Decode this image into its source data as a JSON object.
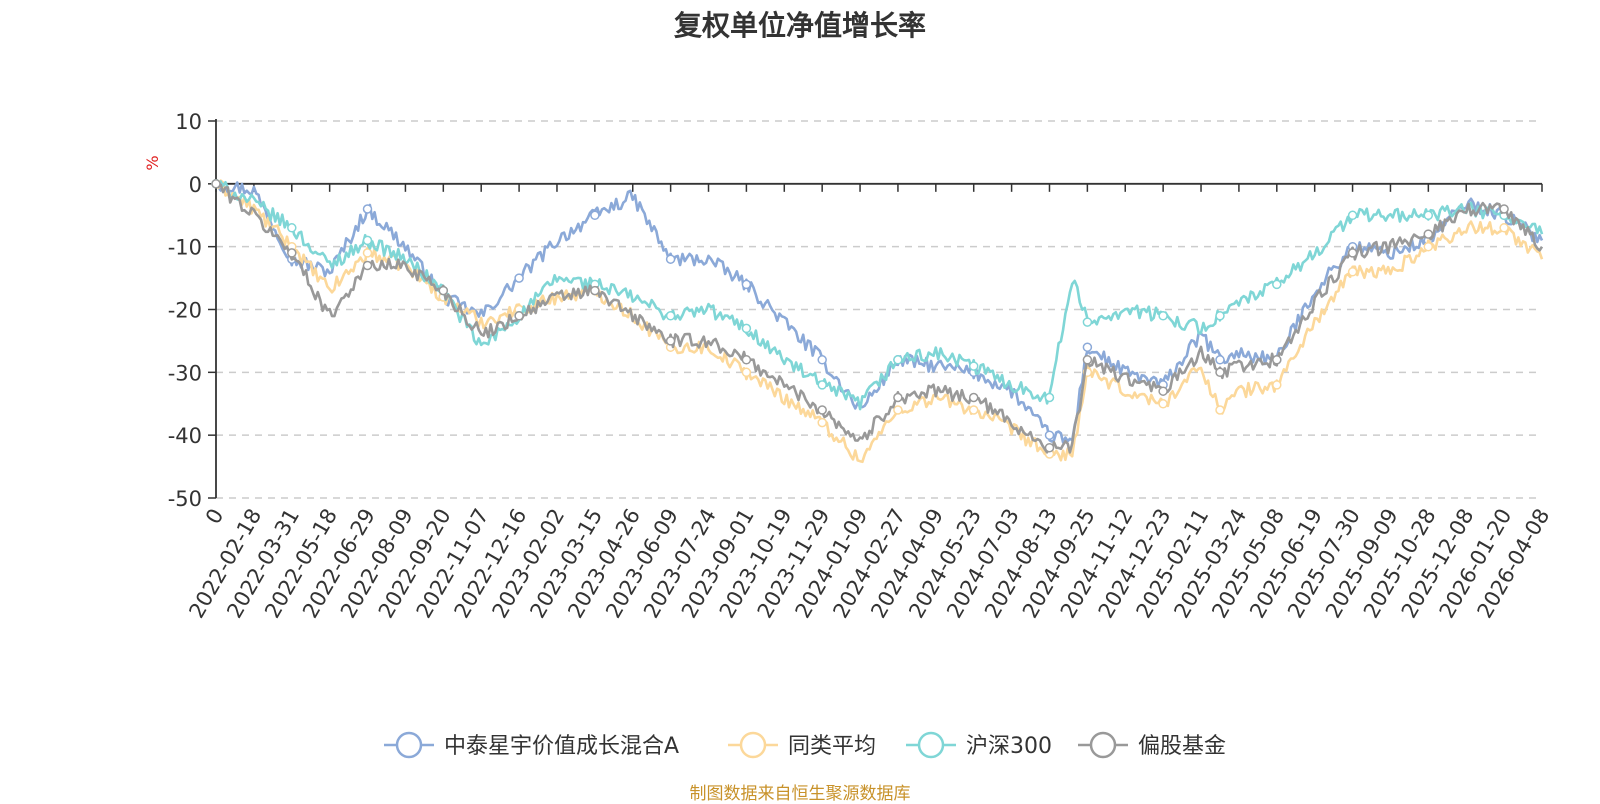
{
  "chart_data": {
    "type": "line",
    "title": "复权单位净值增长率",
    "ylabel": "%",
    "xlabel": "",
    "ylim": [
      -50,
      10
    ],
    "y_ticks": [
      10,
      0,
      -10,
      -20,
      -30,
      -40,
      -50
    ],
    "x_origin_label": "0",
    "x_tick_labels": [
      "2022-02-18",
      "2022-03-31",
      "2022-05-18",
      "2022-06-29",
      "2022-08-09",
      "2022-09-20",
      "2022-11-07",
      "2022-12-16",
      "2023-02-02",
      "2023-03-15",
      "2023-04-26",
      "2023-06-09",
      "2023-07-24",
      "2023-09-01",
      "2023-10-19",
      "2023-11-29",
      "2024-01-09",
      "2024-02-27",
      "2024-04-09",
      "2024-05-23",
      "2024-07-03",
      "2024-08-13",
      "2024-09-25",
      "2024-11-12",
      "2024-12-23",
      "2025-02-11",
      "2025-03-24",
      "2025-05-08",
      "2025-06-19",
      "2025-07-30",
      "2025-09-09",
      "2025-10-28",
      "2025-12-08",
      "2026-01-20",
      "2026-04-08"
    ],
    "x_keypoints": [
      0,
      1,
      2,
      3,
      4,
      5,
      6,
      7,
      8,
      9,
      10,
      11,
      12,
      13,
      14,
      15,
      16,
      17,
      18,
      19,
      20,
      21,
      22,
      22.6,
      23,
      24,
      25,
      26,
      26.5,
      27,
      28,
      29,
      30,
      31,
      32,
      33,
      34,
      35
    ],
    "legend_position": "bottom",
    "grid": true,
    "series": [
      {
        "name": "中泰星宇价值成长混合A",
        "color": "#8ba9d8",
        "values": [
          0,
          -1,
          -12,
          -14,
          -4,
          -10,
          -18,
          -21,
          -15,
          -9,
          -5,
          -2,
          -12,
          -12,
          -16,
          -22,
          -28,
          -36,
          -28,
          -29,
          -30,
          -33,
          -40,
          -41,
          -26,
          -30,
          -32,
          -24,
          -28,
          -27,
          -28,
          -17,
          -10,
          -11,
          -9,
          -3,
          -5,
          -9
        ]
      },
      {
        "name": "同类平均",
        "color": "#fcd89a",
        "values": [
          0,
          -4,
          -10,
          -17,
          -11,
          -13,
          -18,
          -22,
          -20,
          -18,
          -17,
          -21,
          -26,
          -26,
          -30,
          -34,
          -38,
          -44,
          -36,
          -34,
          -36,
          -39,
          -43,
          -43,
          -30,
          -33,
          -35,
          -29,
          -36,
          -33,
          -32,
          -22,
          -14,
          -14,
          -10,
          -7,
          -7,
          -12
        ]
      },
      {
        "name": "沪深300",
        "color": "#7fd6d6",
        "values": [
          0,
          -3,
          -7,
          -13,
          -9,
          -12,
          -17,
          -26,
          -21,
          -15,
          -16,
          -18,
          -21,
          -20,
          -23,
          -28,
          -32,
          -35,
          -28,
          -27,
          -29,
          -32,
          -34,
          -15,
          -22,
          -20,
          -21,
          -23,
          -21,
          -19,
          -16,
          -11,
          -5,
          -5,
          -5,
          -4,
          -5,
          -8
        ]
      },
      {
        "name": "偏股基金",
        "color": "#999999",
        "values": [
          0,
          -5,
          -11,
          -21,
          -13,
          -13,
          -17,
          -24,
          -21,
          -18,
          -17,
          -21,
          -25,
          -25,
          -28,
          -32,
          -36,
          -41,
          -34,
          -33,
          -34,
          -38,
          -42,
          -42,
          -28,
          -31,
          -33,
          -27,
          -30,
          -29,
          -28,
          -19,
          -11,
          -10,
          -8,
          -4,
          -4,
          -10
        ]
      }
    ]
  },
  "footer": {
    "source": "制图数据来自恒生聚源数据库"
  }
}
